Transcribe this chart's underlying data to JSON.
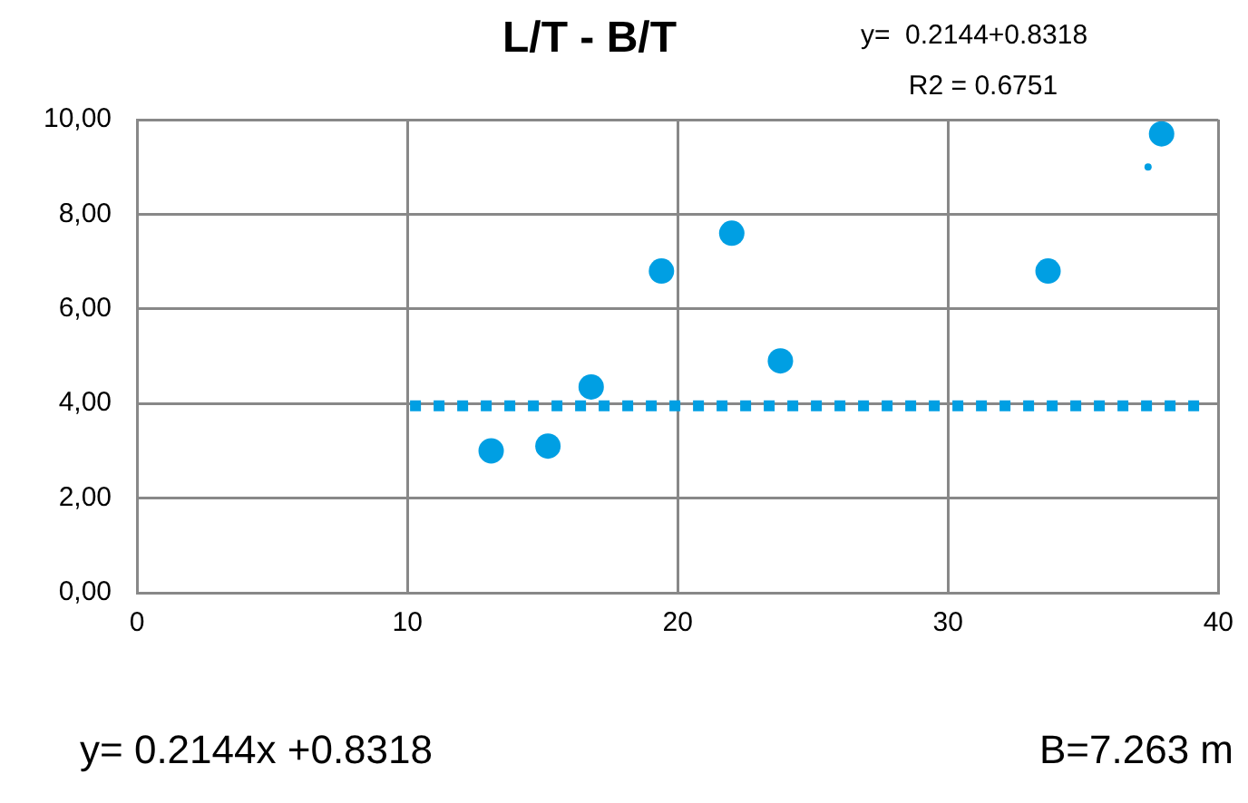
{
  "chart_data": {
    "type": "bubble",
    "title": "L/T - B/T",
    "annotations": [
      "y=  0.2144+0.8318",
      "R2 = 0.6751",
      "y= 0.2144x +0.8318",
      "B=7.263 m"
    ],
    "series": [
      {
        "color": "#009fe3",
        "x": [
          13.1,
          15.2,
          16.8,
          19.4,
          22.0,
          23.8,
          33.7,
          37.9,
          37.4
        ],
        "values": [
          3.0,
          3.1,
          4.35,
          6.8,
          7.6,
          4.9,
          6.8,
          9.7,
          9.0
        ],
        "sizes": [
          1,
          1,
          1,
          1,
          1,
          1,
          1,
          1,
          0.08
        ]
      },
      {
        "type": "line",
        "color": "#009fe3",
        "x": [
          10.1,
          39.4
        ],
        "values": [
          3.95,
          3.95
        ],
        "line_style": "dotted",
        "marker": "none"
      }
    ],
    "xlim": [
      0,
      40
    ],
    "xticks": [
      0,
      10,
      20,
      30,
      40
    ],
    "ylim": [
      0,
      10
    ],
    "yticks": [
      {
        "value": 0,
        "label": "0,00"
      },
      {
        "value": 2,
        "label": "2,00"
      },
      {
        "value": 4,
        "label": "4,00"
      },
      {
        "value": 6,
        "label": "6,00"
      },
      {
        "value": 8,
        "label": "8,00"
      },
      {
        "value": 10,
        "label": "10,00"
      }
    ],
    "grid": true,
    "legend": false
  }
}
